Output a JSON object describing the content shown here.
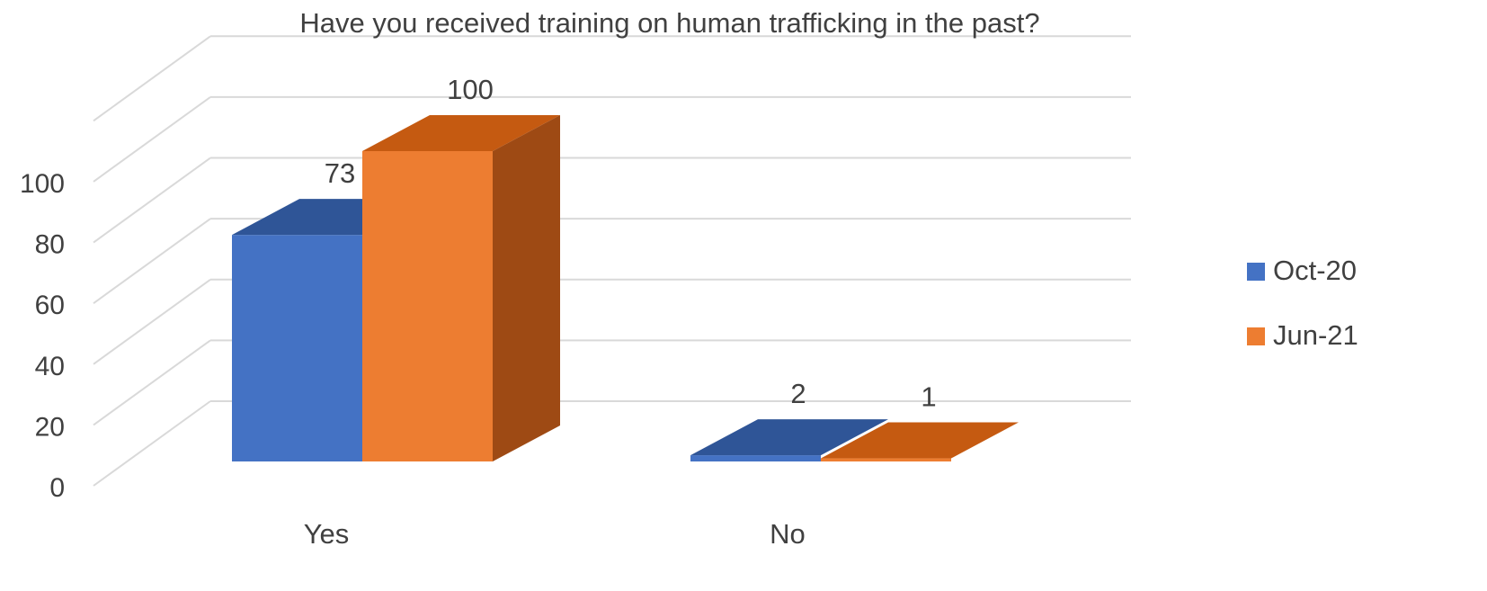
{
  "chart_data": {
    "type": "bar",
    "title": "Have you received training on human trafficking in the past?",
    "categories": [
      "Yes",
      "No"
    ],
    "series": [
      {
        "name": "Oct-20",
        "values": [
          73,
          2
        ],
        "color": "#4472C4",
        "top_color": "#2F5597"
      },
      {
        "name": "Jun-21",
        "values": [
          100,
          1
        ],
        "color": "#ED7D31",
        "top_color": "#C55A11",
        "side_color": "#9E4A14"
      }
    ],
    "yticks": [
      "0",
      "20",
      "40",
      "60",
      "80",
      "100"
    ],
    "ylim": [
      0,
      120
    ],
    "grid": true,
    "legend": "right",
    "data_labels": true,
    "three_d": true
  }
}
